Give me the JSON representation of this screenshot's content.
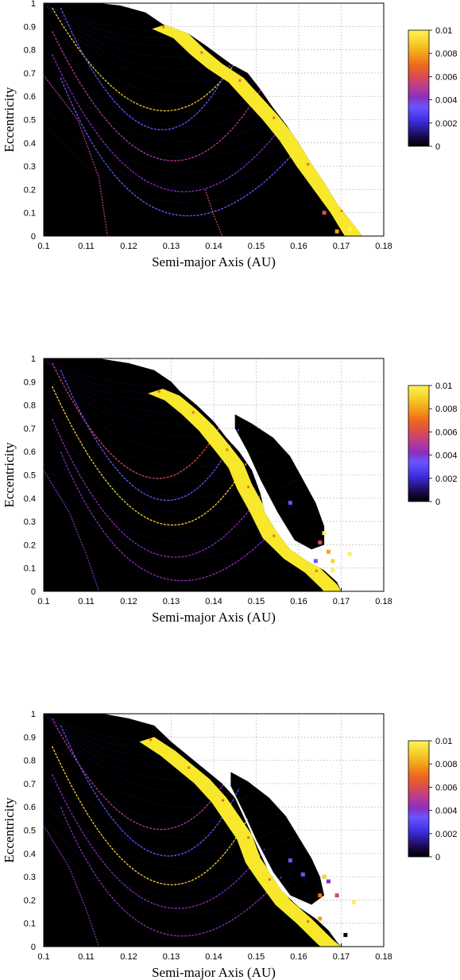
{
  "colors": {
    "background": "#000000",
    "grid": "#9a9a9a",
    "colorbar": [
      "#000000",
      "#2a0b6b",
      "#3b2fe0",
      "#6a55ff",
      "#8a2ec0",
      "#b53a9a",
      "#d94b50",
      "#ef6a1e",
      "#f2a21a",
      "#f6d32a",
      "#fff15a"
    ]
  },
  "chart_data": [
    {
      "type": "heatmap",
      "title": "",
      "xlabel": "Semi-major Axis (AU)",
      "ylabel": "Eccentricity",
      "xlim": [
        0.1,
        0.18
      ],
      "ylim": [
        0,
        1
      ],
      "x_ticks": [
        "0.1",
        "0.11",
        "0.12",
        "0.13",
        "0.14",
        "0.15",
        "0.16",
        "0.17",
        "0.18"
      ],
      "y_ticks": [
        "0",
        "0.1",
        "0.2",
        "0.3",
        "0.4",
        "0.5",
        "0.6",
        "0.7",
        "0.8",
        "0.9",
        "1"
      ],
      "grid": true,
      "colorbar": {
        "range": [
          0,
          0.01
        ],
        "ticks": [
          "0",
          "0.002",
          "0.004",
          "0.006",
          "0.008",
          "0.01"
        ]
      },
      "region": [
        [
          0.1,
          1.0
        ],
        [
          0.113,
          1.0
        ],
        [
          0.118,
          0.99
        ],
        [
          0.124,
          0.96
        ],
        [
          0.128,
          0.91
        ],
        [
          0.134,
          0.87
        ],
        [
          0.138,
          0.82
        ],
        [
          0.141,
          0.78
        ],
        [
          0.144,
          0.74
        ],
        [
          0.148,
          0.7
        ],
        [
          0.151,
          0.63
        ],
        [
          0.154,
          0.55
        ],
        [
          0.157,
          0.48
        ],
        [
          0.16,
          0.4
        ],
        [
          0.163,
          0.31
        ],
        [
          0.166,
          0.23
        ],
        [
          0.169,
          0.14
        ],
        [
          0.172,
          0.07
        ],
        [
          0.175,
          0.0
        ],
        [
          0.1,
          0.0
        ]
      ],
      "unstable_band": [
        [
          0.129,
          0.91
        ],
        [
          0.134,
          0.87
        ],
        [
          0.138,
          0.8
        ],
        [
          0.142,
          0.74
        ],
        [
          0.147,
          0.68
        ],
        [
          0.151,
          0.6
        ],
        [
          0.155,
          0.52
        ],
        [
          0.159,
          0.43
        ],
        [
          0.163,
          0.32
        ],
        [
          0.167,
          0.22
        ],
        [
          0.171,
          0.12
        ],
        [
          0.175,
          0.0
        ]
      ],
      "resonance_arcs": [
        {
          "a0": 0.128,
          "e0": 0.54,
          "a1": 0.102,
          "e1": 0.98,
          "a2": 0.149,
          "e2": 0.86,
          "value": 0.009
        },
        {
          "a0": 0.128,
          "e0": 0.33,
          "a1": 0.102,
          "e1": 0.88,
          "a2": 0.152,
          "e2": 0.66,
          "value": 0.005
        },
        {
          "a0": 0.128,
          "e0": 0.2,
          "a1": 0.102,
          "e1": 0.78,
          "a2": 0.158,
          "e2": 0.52,
          "value": 0.004
        },
        {
          "a0": 0.127,
          "e0": 0.46,
          "a1": 0.104,
          "e1": 0.98,
          "a2": 0.146,
          "e2": 0.82,
          "value": 0.003
        },
        {
          "a0": 0.126,
          "e0": 0.1,
          "a1": 0.104,
          "e1": 0.68,
          "a2": 0.16,
          "e2": 0.38,
          "value": 0.003
        }
      ],
      "resonance_lines": [
        {
          "points": [
            [
              0.1,
              0.69
            ],
            [
              0.108,
              0.5
            ],
            [
              0.113,
              0.25
            ],
            [
              0.115,
              0.0
            ]
          ],
          "value": 0.005
        },
        {
          "points": [
            [
              0.138,
              0.2
            ],
            [
              0.14,
              0.09
            ],
            [
              0.142,
              0.0
            ]
          ],
          "value": 0.006
        }
      ],
      "scatter": [
        {
          "a": 0.172,
          "e": 0.03,
          "value": 0.01
        },
        {
          "a": 0.166,
          "e": 0.1,
          "value": 0.006
        },
        {
          "a": 0.169,
          "e": 0.02,
          "value": 0.008
        }
      ]
    },
    {
      "type": "heatmap",
      "title": "",
      "xlabel": "Semi-major Axis (AU)",
      "ylabel": "Eccentricity",
      "xlim": [
        0.1,
        0.18
      ],
      "ylim": [
        0,
        1
      ],
      "x_ticks": [
        "0.1",
        "0.11",
        "0.12",
        "0.13",
        "0.14",
        "0.15",
        "0.16",
        "0.17",
        "0.18"
      ],
      "y_ticks": [
        "0",
        "0.1",
        "0.2",
        "0.3",
        "0.4",
        "0.5",
        "0.6",
        "0.7",
        "0.8",
        "0.9",
        "1"
      ],
      "grid": true,
      "colorbar": {
        "range": [
          0,
          0.01
        ],
        "ticks": [
          "0",
          "0.002",
          "0.004",
          "0.006",
          "0.008",
          "0.01"
        ]
      },
      "region": [
        [
          0.1,
          1.0
        ],
        [
          0.113,
          1.0
        ],
        [
          0.12,
          0.98
        ],
        [
          0.126,
          0.95
        ],
        [
          0.13,
          0.9
        ],
        [
          0.132,
          0.86
        ],
        [
          0.136,
          0.8
        ],
        [
          0.14,
          0.73
        ],
        [
          0.143,
          0.66
        ],
        [
          0.146,
          0.6
        ],
        [
          0.149,
          0.52
        ],
        [
          0.151,
          0.42
        ],
        [
          0.152,
          0.34
        ],
        [
          0.155,
          0.25
        ],
        [
          0.158,
          0.18
        ],
        [
          0.162,
          0.13
        ],
        [
          0.166,
          0.09
        ],
        [
          0.169,
          0.04
        ],
        [
          0.17,
          0.0
        ],
        [
          0.1,
          0.0
        ]
      ],
      "unstable_band": [
        [
          0.128,
          0.87
        ],
        [
          0.132,
          0.84
        ],
        [
          0.136,
          0.78
        ],
        [
          0.14,
          0.71
        ],
        [
          0.144,
          0.62
        ],
        [
          0.147,
          0.55
        ],
        [
          0.149,
          0.46
        ],
        [
          0.152,
          0.36
        ],
        [
          0.155,
          0.25
        ],
        [
          0.16,
          0.16
        ],
        [
          0.165,
          0.1
        ],
        [
          0.169,
          0.03
        ],
        [
          0.17,
          0.0
        ]
      ],
      "lobe": [
        [
          0.145,
          0.76
        ],
        [
          0.149,
          0.72
        ],
        [
          0.154,
          0.66
        ],
        [
          0.158,
          0.58
        ],
        [
          0.161,
          0.48
        ],
        [
          0.164,
          0.38
        ],
        [
          0.166,
          0.28
        ],
        [
          0.166,
          0.2
        ],
        [
          0.163,
          0.18
        ],
        [
          0.159,
          0.22
        ],
        [
          0.155,
          0.34
        ],
        [
          0.151,
          0.48
        ],
        [
          0.148,
          0.6
        ],
        [
          0.145,
          0.7
        ]
      ],
      "resonance_arcs": [
        {
          "a0": 0.126,
          "e0": 0.49,
          "a1": 0.102,
          "e1": 0.98,
          "a2": 0.144,
          "e2": 0.8,
          "value": 0.006
        },
        {
          "a0": 0.127,
          "e0": 0.3,
          "a1": 0.102,
          "e1": 0.88,
          "a2": 0.148,
          "e2": 0.56,
          "value": 0.009
        },
        {
          "a0": 0.126,
          "e0": 0.16,
          "a1": 0.102,
          "e1": 0.74,
          "a2": 0.152,
          "e2": 0.44,
          "value": 0.004
        },
        {
          "a0": 0.125,
          "e0": 0.06,
          "a1": 0.104,
          "e1": 0.6,
          "a2": 0.156,
          "e2": 0.3,
          "value": 0.004
        },
        {
          "a0": 0.127,
          "e0": 0.4,
          "a1": 0.104,
          "e1": 0.95,
          "a2": 0.146,
          "e2": 0.7,
          "value": 0.003
        }
      ],
      "resonance_lines": [
        {
          "points": [
            [
              0.1,
              0.52
            ],
            [
              0.106,
              0.34
            ],
            [
              0.11,
              0.16
            ],
            [
              0.113,
              0.0
            ]
          ],
          "value": 0.004
        }
      ],
      "scatter": [
        {
          "a": 0.166,
          "e": 0.25,
          "value": 0.01
        },
        {
          "a": 0.165,
          "e": 0.21,
          "value": 0.006
        },
        {
          "a": 0.167,
          "e": 0.17,
          "value": 0.008
        },
        {
          "a": 0.172,
          "e": 0.16,
          "value": 0.01
        },
        {
          "a": 0.168,
          "e": 0.09,
          "value": 0.01
        },
        {
          "a": 0.158,
          "e": 0.38,
          "value": 0.003
        },
        {
          "a": 0.164,
          "e": 0.13,
          "value": 0.003
        },
        {
          "a": 0.168,
          "e": 0.13,
          "value": 0.009
        }
      ]
    },
    {
      "type": "heatmap",
      "title": "",
      "xlabel": "Semi-major Axis (AU)",
      "ylabel": "Eccentricity",
      "xlim": [
        0.1,
        0.18
      ],
      "ylim": [
        0,
        1
      ],
      "x_ticks": [
        "0.1",
        "0.11",
        "0.12",
        "0.13",
        "0.14",
        "0.15",
        "0.16",
        "0.17",
        "0.18"
      ],
      "y_ticks": [
        "0",
        "0.1",
        "0.2",
        "0.3",
        "0.4",
        "0.5",
        "0.6",
        "0.7",
        "0.8",
        "0.9",
        "1"
      ],
      "grid": true,
      "colorbar": {
        "range": [
          0,
          0.01
        ],
        "ticks": [
          "0",
          "0.002",
          "0.004",
          "0.006",
          "0.008",
          "0.01"
        ]
      },
      "region": [
        [
          0.1,
          1.0
        ],
        [
          0.114,
          1.0
        ],
        [
          0.12,
          0.98
        ],
        [
          0.126,
          0.95
        ],
        [
          0.13,
          0.88
        ],
        [
          0.134,
          0.82
        ],
        [
          0.138,
          0.76
        ],
        [
          0.142,
          0.7
        ],
        [
          0.145,
          0.64
        ],
        [
          0.147,
          0.56
        ],
        [
          0.149,
          0.48
        ],
        [
          0.151,
          0.4
        ],
        [
          0.153,
          0.32
        ],
        [
          0.156,
          0.24
        ],
        [
          0.16,
          0.17
        ],
        [
          0.164,
          0.12
        ],
        [
          0.167,
          0.07
        ],
        [
          0.169,
          0.02
        ],
        [
          0.17,
          0.0
        ],
        [
          0.1,
          0.0
        ]
      ],
      "unstable_band": [
        [
          0.126,
          0.9
        ],
        [
          0.131,
          0.84
        ],
        [
          0.135,
          0.78
        ],
        [
          0.139,
          0.72
        ],
        [
          0.143,
          0.64
        ],
        [
          0.146,
          0.56
        ],
        [
          0.149,
          0.48
        ],
        [
          0.151,
          0.38
        ],
        [
          0.154,
          0.3
        ],
        [
          0.158,
          0.2
        ],
        [
          0.163,
          0.12
        ],
        [
          0.168,
          0.03
        ],
        [
          0.17,
          0.0
        ]
      ],
      "lobe": [
        [
          0.144,
          0.75
        ],
        [
          0.148,
          0.71
        ],
        [
          0.153,
          0.64
        ],
        [
          0.157,
          0.56
        ],
        [
          0.16,
          0.47
        ],
        [
          0.163,
          0.38
        ],
        [
          0.165,
          0.3
        ],
        [
          0.166,
          0.22
        ],
        [
          0.163,
          0.18
        ],
        [
          0.158,
          0.22
        ],
        [
          0.154,
          0.32
        ],
        [
          0.15,
          0.46
        ],
        [
          0.147,
          0.58
        ],
        [
          0.144,
          0.69
        ]
      ],
      "resonance_arcs": [
        {
          "a0": 0.126,
          "e0": 0.51,
          "a1": 0.102,
          "e1": 0.98,
          "a2": 0.145,
          "e2": 0.78,
          "value": 0.005
        },
        {
          "a0": 0.127,
          "e0": 0.28,
          "a1": 0.102,
          "e1": 0.86,
          "a2": 0.148,
          "e2": 0.55,
          "value": 0.009
        },
        {
          "a0": 0.126,
          "e0": 0.18,
          "a1": 0.102,
          "e1": 0.74,
          "a2": 0.152,
          "e2": 0.42,
          "value": 0.004
        },
        {
          "a0": 0.125,
          "e0": 0.06,
          "a1": 0.104,
          "e1": 0.6,
          "a2": 0.156,
          "e2": 0.3,
          "value": 0.004
        },
        {
          "a0": 0.127,
          "e0": 0.4,
          "a1": 0.104,
          "e1": 0.95,
          "a2": 0.146,
          "e2": 0.68,
          "value": 0.003
        }
      ],
      "resonance_lines": [
        {
          "points": [
            [
              0.1,
              0.52
            ],
            [
              0.106,
              0.34
            ],
            [
              0.11,
              0.16
            ],
            [
              0.113,
              0.0
            ]
          ],
          "value": 0.004
        }
      ],
      "scatter": [
        {
          "a": 0.166,
          "e": 0.3,
          "value": 0.009
        },
        {
          "a": 0.167,
          "e": 0.28,
          "value": 0.004
        },
        {
          "a": 0.165,
          "e": 0.22,
          "value": 0.007
        },
        {
          "a": 0.173,
          "e": 0.19,
          "value": 0.01
        },
        {
          "a": 0.169,
          "e": 0.22,
          "value": 0.006
        },
        {
          "a": 0.171,
          "e": 0.05,
          "value": 0.0
        },
        {
          "a": 0.158,
          "e": 0.37,
          "value": 0.003
        },
        {
          "a": 0.161,
          "e": 0.31,
          "value": 0.003
        },
        {
          "a": 0.165,
          "e": 0.12,
          "value": 0.008
        }
      ]
    }
  ]
}
